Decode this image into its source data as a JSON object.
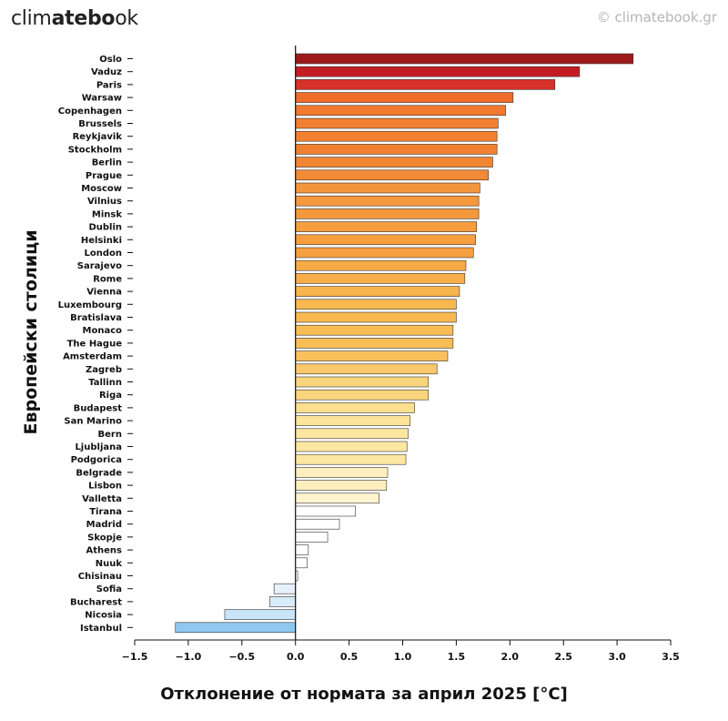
{
  "header": {
    "brand_prefix": "clim",
    "brand_bold": "atebo",
    "brand_suffix": "ok",
    "copyright": "© climatebook.gr"
  },
  "chart_data": {
    "type": "bar",
    "orientation": "horizontal",
    "title": "",
    "xlabel": "Отклонение от нормата за април 2025 [°C]",
    "ylabel": "Европейски столици",
    "xlim": [
      -1.5,
      3.5
    ],
    "xticks": [
      "−1.5",
      "−1.0",
      "−0.5",
      "0.0",
      "0.5",
      "1.0",
      "1.5",
      "2.0",
      "2.5",
      "3.0",
      "3.5"
    ],
    "grid": false,
    "categories": [
      "Oslo",
      "Vaduz",
      "Paris",
      "Warsaw",
      "Copenhagen",
      "Brussels",
      "Reykjavik",
      "Stockholm",
      "Berlin",
      "Prague",
      "Moscow",
      "Vilnius",
      "Minsk",
      "Dublin",
      "Helsinki",
      "London",
      "Sarajevo",
      "Rome",
      "Vienna",
      "Luxembourg",
      "Bratislava",
      "Monaco",
      "The Hague",
      "Amsterdam",
      "Zagreb",
      "Tallinn",
      "Riga",
      "Budapest",
      "San Marino",
      "Bern",
      "Ljubljana",
      "Podgorica",
      "Belgrade",
      "Lisbon",
      "Valletta",
      "Tirana",
      "Madrid",
      "Skopje",
      "Athens",
      "Nuuk",
      "Chisinau",
      "Sofia",
      "Bucharest",
      "Nicosia",
      "Istanbul"
    ],
    "values": [
      3.15,
      2.65,
      2.42,
      2.03,
      1.96,
      1.89,
      1.88,
      1.88,
      1.84,
      1.8,
      1.72,
      1.71,
      1.71,
      1.69,
      1.68,
      1.66,
      1.59,
      1.58,
      1.53,
      1.5,
      1.5,
      1.47,
      1.47,
      1.42,
      1.32,
      1.24,
      1.24,
      1.11,
      1.07,
      1.05,
      1.04,
      1.03,
      0.86,
      0.85,
      0.78,
      0.56,
      0.41,
      0.3,
      0.12,
      0.11,
      0.02,
      -0.2,
      -0.24,
      -0.66,
      -1.12
    ],
    "colors": [
      "#9e1a1a",
      "#c21e24",
      "#d8312a",
      "#ef6c2a",
      "#f17a2e",
      "#f17f2f",
      "#f18130",
      "#f18130",
      "#f38633",
      "#f38a35",
      "#f5953a",
      "#f5983c",
      "#f5983c",
      "#f69d3e",
      "#f69d3e",
      "#f6a040",
      "#f7ab46",
      "#f7ad48",
      "#f8b44d",
      "#f9b850",
      "#f9b850",
      "#f9bd55",
      "#f9bd55",
      "#f9c05c",
      "#fac86a",
      "#fbd57d",
      "#fbd57d",
      "#fbdf8e",
      "#fce49a",
      "#fce7a1",
      "#fce7a1",
      "#fce7a1",
      "#fdeec0",
      "#fdeec0",
      "#fef4cf",
      "#ffffff",
      "#ffffff",
      "#ffffff",
      "#ffffff",
      "#ffffff",
      "#ffffff",
      "#e6f1fb",
      "#d8ebf9",
      "#c8e4f8",
      "#8fc7ef"
    ]
  }
}
